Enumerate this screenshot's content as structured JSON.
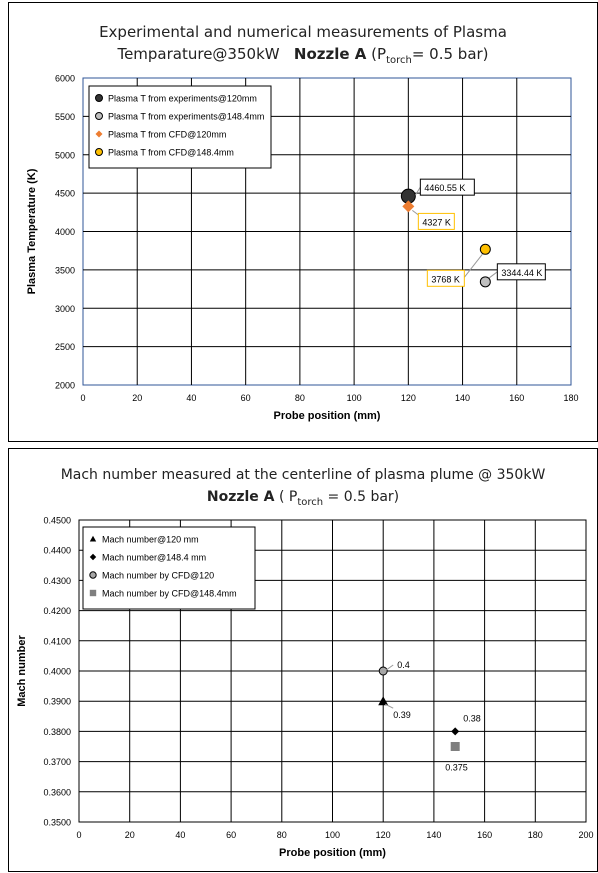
{
  "chart_data": [
    {
      "type": "scatter",
      "title_line1": "Experimental and numerical measurements of Plasma",
      "title_line2_pre": "Temparature@350kW",
      "title_line2_bold": "Nozzle A",
      "title_line2_paren_open": "(P",
      "title_line2_sub": "torch",
      "title_line2_post": "= 0.5 bar)",
      "xlabel": "Probe position (mm)",
      "ylabel": "Plasma Temperature (K)",
      "xlim": [
        0,
        180
      ],
      "ylim": [
        2000,
        6000
      ],
      "xticks": [
        "0",
        "20",
        "40",
        "60",
        "80",
        "100",
        "120",
        "140",
        "160",
        "180"
      ],
      "yticks": [
        "2000",
        "2500",
        "3000",
        "3500",
        "4000",
        "4500",
        "5000",
        "5500",
        "6000"
      ],
      "grid": true,
      "legend_position": "top-left",
      "series": [
        {
          "name": "Plasma T from experiments@120mm",
          "marker": "circle-dark",
          "color": "#333333",
          "x": [
            120
          ],
          "y": [
            4460.55
          ]
        },
        {
          "name": "Plasma T from experiments@148.4mm",
          "marker": "circle-grey",
          "color": "#bfbfbf",
          "x": [
            148.4
          ],
          "y": [
            3344.44
          ]
        },
        {
          "name": "Plasma T from CFD@120mm",
          "marker": "diamond-orange",
          "color": "#ed7d31",
          "x": [
            120
          ],
          "y": [
            4327
          ]
        },
        {
          "name": "Plasma T from CFD@148.4mm",
          "marker": "circle-yellow",
          "color": "#ffc000",
          "x": [
            148.4
          ],
          "y": [
            3768
          ]
        }
      ],
      "annotations": [
        {
          "text": "4460.55 K",
          "x": 120,
          "y": 4460.55,
          "border": "#000000"
        },
        {
          "text": "4327 K",
          "x": 120,
          "y": 4327,
          "border": "#ffc000"
        },
        {
          "text": "3768 K",
          "x": 148.4,
          "y": 3768,
          "border": "#ffc000"
        },
        {
          "text": "3344.44 K",
          "x": 148.4,
          "y": 3344.44,
          "border": "#000000"
        }
      ]
    },
    {
      "type": "scatter",
      "title_line1": "Mach number measured at the centerline of plasma plume @ 350kW",
      "title_line2_bold": "Nozzle A",
      "title_line2_paren_open": "( P",
      "title_line2_sub": "torch",
      "title_line2_post": " = 0.5 bar)",
      "xlabel": "Probe position (mm)",
      "ylabel": "Mach number",
      "xlim": [
        0,
        200
      ],
      "ylim": [
        0.35,
        0.45
      ],
      "xticks": [
        "0",
        "20",
        "40",
        "60",
        "80",
        "100",
        "120",
        "140",
        "160",
        "180",
        "200"
      ],
      "yticks": [
        "0.3500",
        "0.3600",
        "0.3700",
        "0.3800",
        "0.3900",
        "0.4000",
        "0.4100",
        "0.4200",
        "0.4300",
        "0.4400",
        "0.4500"
      ],
      "grid": true,
      "legend_position": "top-left",
      "series": [
        {
          "name": "Mach number@120 mm",
          "marker": "triangle-black",
          "color": "#000000",
          "x": [
            120
          ],
          "y": [
            0.39
          ]
        },
        {
          "name": "Mach number@148.4 mm",
          "marker": "diamond-black",
          "color": "#000000",
          "x": [
            148.4
          ],
          "y": [
            0.38
          ]
        },
        {
          "name": "Mach number by CFD@120",
          "marker": "circle-grey",
          "color": "#a6a6a6",
          "x": [
            120
          ],
          "y": [
            0.4
          ]
        },
        {
          "name": "Mach number by CFD@148.4mm",
          "marker": "square-grey",
          "color": "#7f7f7f",
          "x": [
            148.4
          ],
          "y": [
            0.375
          ]
        }
      ],
      "annotations": [
        {
          "text": "0.4",
          "x": 120,
          "y": 0.4
        },
        {
          "text": "0.39",
          "x": 120,
          "y": 0.39
        },
        {
          "text": "0.38",
          "x": 148.4,
          "y": 0.38
        },
        {
          "text": "0.375",
          "x": 148.4,
          "y": 0.375
        }
      ]
    }
  ]
}
